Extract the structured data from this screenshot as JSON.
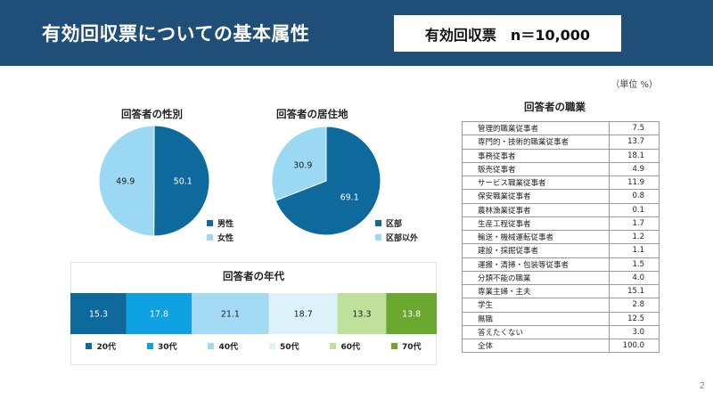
{
  "header": {
    "title": "有効回収票についての基本属性",
    "sample": "有効回収票　n＝10,000"
  },
  "unit_note": "（単位 %）",
  "page_number": "2",
  "colors": {
    "header_bg": "#1f4e79",
    "blue_dark": "#0e6a9c",
    "blue_light": "#9ad8f4",
    "age": [
      "#0e6a9c",
      "#0ea1e3",
      "#a3dbf5",
      "#ddf1fb",
      "#bfe09a",
      "#6aa82f"
    ]
  },
  "chart_data": [
    {
      "type": "pie",
      "title": "回答者の性別",
      "categories": [
        "男性",
        "女性"
      ],
      "values": [
        50.1,
        49.9
      ]
    },
    {
      "type": "pie",
      "title": "回答者の居住地",
      "categories": [
        "区部",
        "区部以外"
      ],
      "values": [
        69.1,
        30.9
      ]
    },
    {
      "type": "bar",
      "subtype": "stacked-100",
      "title": "回答者の年代",
      "categories": [
        "20代",
        "30代",
        "40代",
        "50代",
        "60代",
        "70代"
      ],
      "values": [
        15.3,
        17.8,
        21.1,
        18.7,
        13.3,
        13.8
      ],
      "legend": "bottom"
    },
    {
      "type": "table",
      "title": "回答者の職業",
      "rows": [
        [
          "管理的職業従事者",
          "7.5"
        ],
        [
          "専門的・技術的職業従事者",
          "13.7"
        ],
        [
          "事務従事者",
          "18.1"
        ],
        [
          "販売従事者",
          "4.9"
        ],
        [
          "サービス職業従事者",
          "11.9"
        ],
        [
          "保安職業従事者",
          "0.8"
        ],
        [
          "農林漁業従事者",
          "0.1"
        ],
        [
          "生産工程従事者",
          "1.7"
        ],
        [
          "輸送・機械運転従事者",
          "1.2"
        ],
        [
          "建設・採掘従事者",
          "1.1"
        ],
        [
          "運搬・清掃・包装等従事者",
          "1.5"
        ],
        [
          "分類不能の職業",
          "4.0"
        ],
        [
          "専業主婦・主夫",
          "15.1"
        ],
        [
          "学生",
          "2.8"
        ],
        [
          "無職",
          "12.5"
        ],
        [
          "答えたくない",
          "3.0"
        ],
        [
          "全体",
          "100.0"
        ]
      ]
    }
  ]
}
